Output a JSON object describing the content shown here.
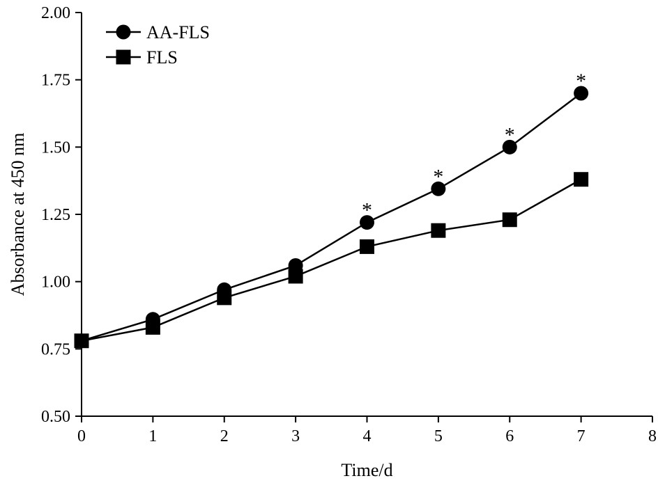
{
  "chart_data": {
    "type": "line",
    "title": "",
    "xlabel": "Time/d",
    "ylabel": "Absorbance at 450 nm",
    "xlim": [
      0,
      8
    ],
    "ylim": [
      0.5,
      2.0
    ],
    "x_ticks": [
      0,
      1,
      2,
      3,
      4,
      5,
      6,
      7,
      8
    ],
    "x_tick_labels": [
      "0",
      "1",
      "2",
      "3",
      "4",
      "5",
      "6",
      "7",
      "8"
    ],
    "y_ticks": [
      0.5,
      0.75,
      1.0,
      1.25,
      1.5,
      1.75,
      2.0
    ],
    "y_tick_labels": [
      "0.50",
      "0.75",
      "1.00",
      "1.25",
      "1.50",
      "1.75",
      "2.00"
    ],
    "grid": false,
    "legend_position": "top-left",
    "series": [
      {
        "name": "AA-FLS",
        "marker": "circle",
        "color": "#000000",
        "x": [
          0,
          1,
          2,
          3,
          4,
          5,
          6,
          7
        ],
        "values": [
          0.78,
          0.86,
          0.97,
          1.06,
          1.22,
          1.345,
          1.5,
          1.7
        ]
      },
      {
        "name": "FLS",
        "marker": "square",
        "color": "#000000",
        "x": [
          0,
          1,
          2,
          3,
          4,
          5,
          6,
          7
        ],
        "values": [
          0.78,
          0.83,
          0.94,
          1.02,
          1.13,
          1.19,
          1.23,
          1.38
        ]
      }
    ],
    "annotations": [
      {
        "x": 4,
        "text": "*",
        "series": "AA-FLS"
      },
      {
        "x": 5,
        "text": "*",
        "series": "AA-FLS"
      },
      {
        "x": 6,
        "text": "*",
        "series": "AA-FLS"
      },
      {
        "x": 7,
        "text": "*",
        "series": "AA-FLS"
      }
    ]
  }
}
